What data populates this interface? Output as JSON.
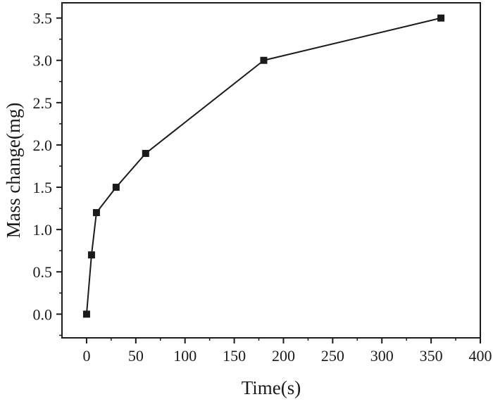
{
  "chart_data": {
    "type": "line",
    "title": "",
    "xlabel": "Time(s)",
    "ylabel": "Mass change(mg)",
    "xlim": [
      -25,
      400
    ],
    "ylim": [
      -0.28,
      3.68
    ],
    "x_ticks": [
      0,
      50,
      100,
      150,
      200,
      250,
      300,
      350,
      400
    ],
    "y_ticks": [
      0.0,
      0.5,
      1.0,
      1.5,
      2.0,
      2.5,
      3.0,
      3.5
    ],
    "x_tick_labels": [
      "0",
      "50",
      "100",
      "150",
      "200",
      "250",
      "300",
      "350",
      "400"
    ],
    "y_tick_labels": [
      "0.0",
      "0.5",
      "1.0",
      "1.5",
      "2.0",
      "2.5",
      "3.0",
      "3.5"
    ],
    "grid": false,
    "legend": "none",
    "marker": "square",
    "line_color": "#1a1a1a",
    "series": [
      {
        "x": [
          0,
          5,
          10,
          30,
          60,
          180,
          360
        ],
        "y": [
          0.0,
          0.7,
          1.2,
          1.5,
          1.9,
          3.0,
          3.5
        ]
      }
    ]
  }
}
